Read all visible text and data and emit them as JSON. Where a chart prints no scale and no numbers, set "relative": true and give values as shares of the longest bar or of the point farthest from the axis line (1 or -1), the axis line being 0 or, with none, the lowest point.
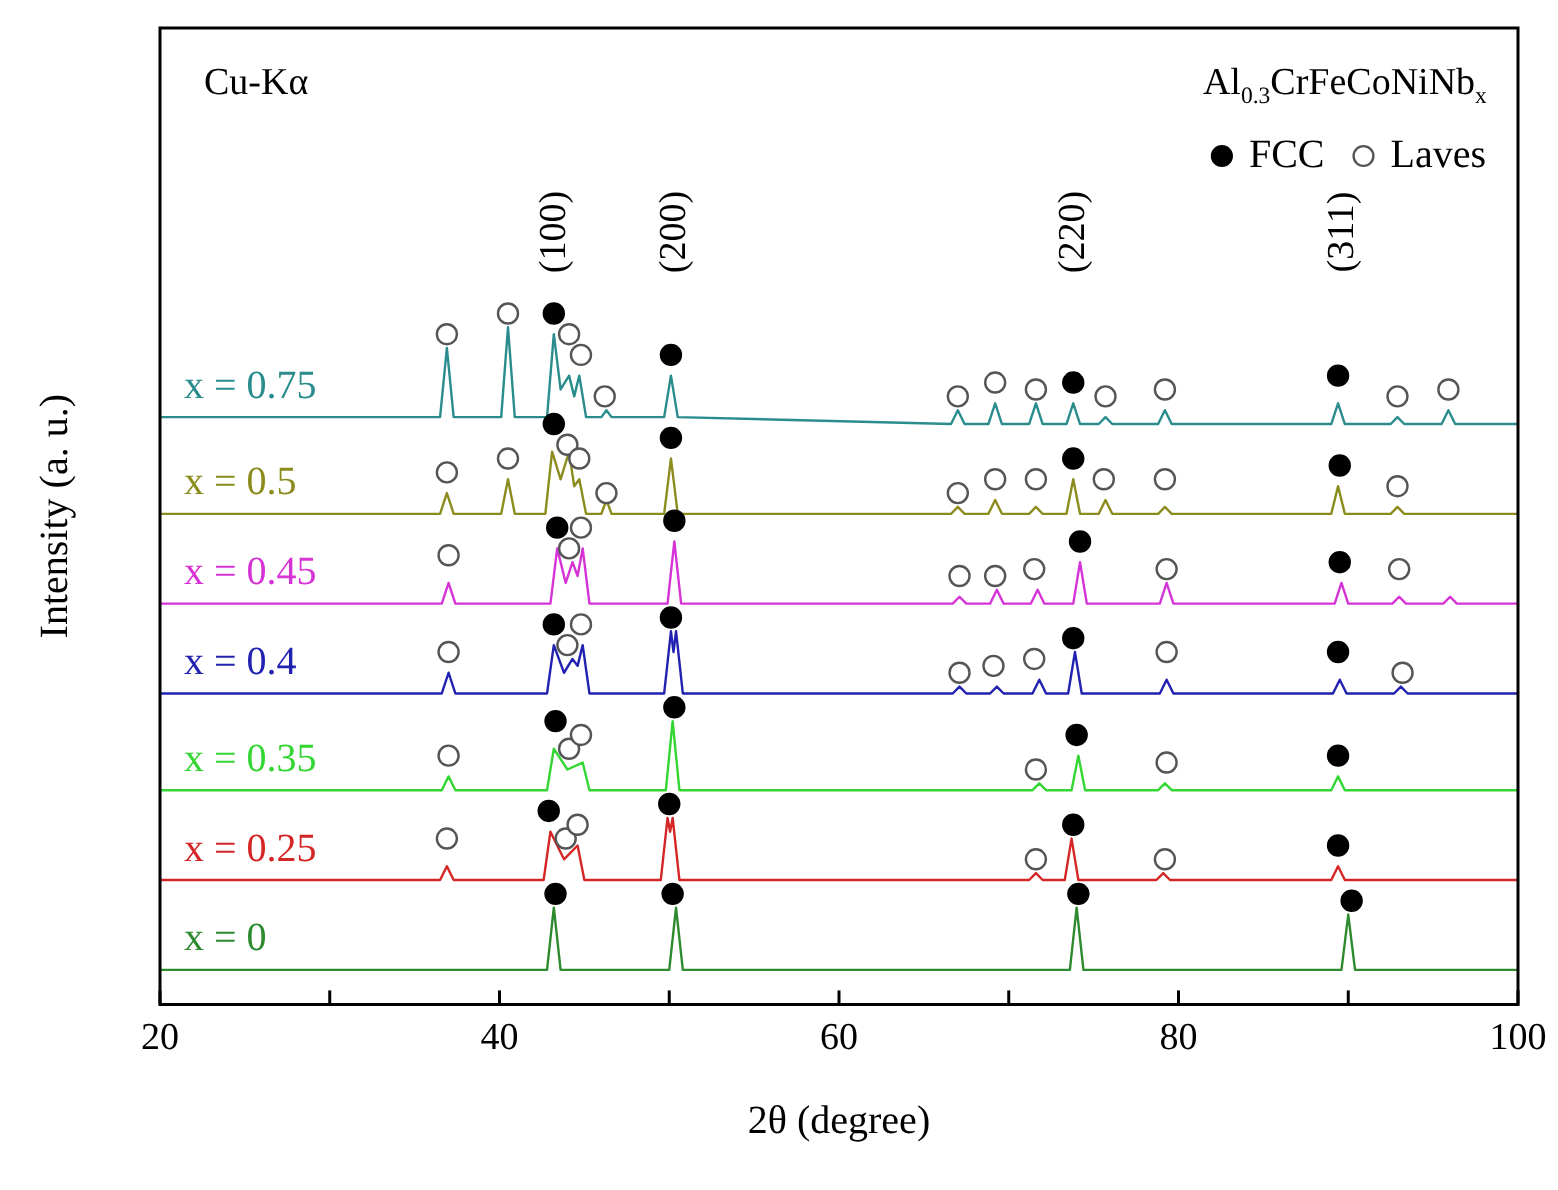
{
  "chart_data": {
    "type": "line",
    "relative": true,
    "xlabel": "2θ (degree)",
    "ylabel": "Intensity (a. u.)",
    "xlim": [
      20,
      100
    ],
    "xticks": [
      20,
      40,
      60,
      80,
      100,
      {
        "value": 30,
        "label": null
      },
      {
        "value": 50,
        "label": null
      },
      {
        "value": 70,
        "label": null
      },
      {
        "value": 90,
        "label": null
      }
    ],
    "legend": "top right",
    "annotations": [
      "Cu-Kα",
      "Al$_{0.3}$CrFeCoNiNb$_{x}$",
      "(100)",
      "(200)",
      "(220)",
      "(311)"
    ],
    "series": [
      {
        "name": "x = 0.75",
        "color": "#2a8c8c",
        "x": [
          20,
          36.5,
          36.9,
          37.3,
          40.1,
          40.5,
          40.9,
          42.8,
          43.2,
          43.6,
          44.1,
          44.4,
          44.7,
          45.1,
          46.0,
          46.3,
          46.6,
          49.7,
          50.1,
          50.5,
          66.6,
          67.0,
          67.4,
          68.8,
          69.2,
          69.6,
          71.2,
          71.6,
          72.0,
          73.4,
          73.8,
          74.2,
          75.3,
          75.7,
          76.1,
          78.8,
          79.2,
          79.6,
          89.0,
          89.4,
          89.8,
          92.5,
          92.9,
          93.3,
          95.5,
          95.9,
          96.3,
          100
        ],
        "values": [
          0.85,
          0.85,
          0.95,
          0.85,
          0.85,
          0.98,
          0.85,
          0.85,
          0.97,
          0.89,
          0.91,
          0.88,
          0.91,
          0.85,
          0.85,
          0.86,
          0.85,
          0.85,
          0.91,
          0.85,
          0.84,
          0.86,
          0.84,
          0.84,
          0.87,
          0.84,
          0.84,
          0.87,
          0.84,
          0.84,
          0.87,
          0.84,
          0.84,
          0.85,
          0.84,
          0.84,
          0.86,
          0.84,
          0.84,
          0.87,
          0.84,
          0.84,
          0.85,
          0.84,
          0.84,
          0.86,
          0.84,
          0.84
        ]
      },
      {
        "name": "x = 0.5",
        "color": "#8c8c1e",
        "x": [
          20,
          36.5,
          36.9,
          37.3,
          40.1,
          40.5,
          40.9,
          42.7,
          43.1,
          43.6,
          44.1,
          44.4,
          44.7,
          45.1,
          46.0,
          46.3,
          46.6,
          49.7,
          50.1,
          50.5,
          66.6,
          67.0,
          67.4,
          68.8,
          69.2,
          69.6,
          71.2,
          71.6,
          72.0,
          73.4,
          73.8,
          74.2,
          75.3,
          75.7,
          76.1,
          78.8,
          79.2,
          79.6,
          89.0,
          89.4,
          89.8,
          92.5,
          92.9,
          93.3,
          100
        ],
        "values": [
          0.71,
          0.71,
          0.74,
          0.71,
          0.71,
          0.76,
          0.71,
          0.71,
          0.8,
          0.76,
          0.8,
          0.75,
          0.76,
          0.71,
          0.71,
          0.73,
          0.71,
          0.71,
          0.79,
          0.71,
          0.71,
          0.72,
          0.71,
          0.71,
          0.73,
          0.71,
          0.71,
          0.72,
          0.71,
          0.71,
          0.76,
          0.71,
          0.71,
          0.73,
          0.71,
          0.71,
          0.72,
          0.71,
          0.71,
          0.75,
          0.71,
          0.71,
          0.72,
          0.71,
          0.71
        ]
      },
      {
        "name": "x = 0.45",
        "color": "#d633d6",
        "x": [
          20,
          36.6,
          37.0,
          37.4,
          43.0,
          43.4,
          43.9,
          44.3,
          44.6,
          44.9,
          45.3,
          49.9,
          50.3,
          50.7,
          66.7,
          67.1,
          67.5,
          68.9,
          69.3,
          69.7,
          71.3,
          71.7,
          72.1,
          73.8,
          74.2,
          74.6,
          78.9,
          79.3,
          79.7,
          89.2,
          89.6,
          90.0,
          92.6,
          93.0,
          93.4,
          95.6,
          96.0,
          96.4,
          100
        ],
        "values": [
          0.58,
          0.58,
          0.61,
          0.58,
          0.58,
          0.66,
          0.61,
          0.64,
          0.62,
          0.66,
          0.58,
          0.58,
          0.67,
          0.58,
          0.58,
          0.59,
          0.58,
          0.58,
          0.6,
          0.58,
          0.58,
          0.6,
          0.58,
          0.58,
          0.64,
          0.58,
          0.58,
          0.61,
          0.58,
          0.58,
          0.61,
          0.58,
          0.58,
          0.59,
          0.58,
          0.58,
          0.59,
          0.58,
          0.58
        ]
      },
      {
        "name": "x = 0.4",
        "color": "#2222b0",
        "x": [
          20,
          36.6,
          37.0,
          37.4,
          42.8,
          43.2,
          43.8,
          44.3,
          44.6,
          44.9,
          45.3,
          49.7,
          50.1,
          50.25,
          50.4,
          50.8,
          66.7,
          67.1,
          67.5,
          68.9,
          69.3,
          69.7,
          71.4,
          71.8,
          72.2,
          73.5,
          73.9,
          74.3,
          78.9,
          79.3,
          79.7,
          89.1,
          89.5,
          89.9,
          92.7,
          93.1,
          93.5,
          100
        ],
        "values": [
          0.45,
          0.45,
          0.48,
          0.45,
          0.45,
          0.52,
          0.48,
          0.5,
          0.49,
          0.52,
          0.45,
          0.45,
          0.54,
          0.51,
          0.54,
          0.45,
          0.45,
          0.46,
          0.45,
          0.45,
          0.46,
          0.45,
          0.45,
          0.47,
          0.45,
          0.45,
          0.51,
          0.45,
          0.45,
          0.47,
          0.45,
          0.45,
          0.47,
          0.45,
          0.45,
          0.46,
          0.45,
          0.45
        ]
      },
      {
        "name": "x = 0.35",
        "color": "#33d633",
        "x": [
          20,
          36.6,
          37.0,
          37.4,
          42.8,
          43.2,
          44.0,
          44.9,
          45.3,
          49.8,
          50.2,
          50.6,
          71.4,
          71.8,
          72.2,
          73.7,
          74.1,
          74.5,
          78.8,
          79.2,
          79.6,
          89.0,
          89.4,
          89.8,
          100
        ],
        "values": [
          0.31,
          0.31,
          0.33,
          0.31,
          0.31,
          0.37,
          0.34,
          0.35,
          0.31,
          0.31,
          0.41,
          0.31,
          0.31,
          0.32,
          0.31,
          0.31,
          0.36,
          0.31,
          0.31,
          0.32,
          0.31,
          0.31,
          0.33,
          0.31,
          0.31
        ]
      },
      {
        "name": "x = 0.25",
        "color": "#d42626",
        "x": [
          20,
          36.5,
          36.9,
          37.3,
          42.6,
          43.0,
          43.8,
          44.6,
          45.0,
          49.5,
          49.9,
          50.05,
          50.2,
          50.6,
          71.2,
          71.6,
          72.0,
          73.3,
          73.7,
          74.1,
          78.7,
          79.1,
          79.5,
          89.0,
          89.4,
          89.8,
          100
        ],
        "values": [
          0.18,
          0.18,
          0.2,
          0.18,
          0.18,
          0.25,
          0.21,
          0.23,
          0.18,
          0.18,
          0.27,
          0.25,
          0.27,
          0.18,
          0.18,
          0.19,
          0.18,
          0.18,
          0.24,
          0.18,
          0.18,
          0.19,
          0.18,
          0.18,
          0.2,
          0.18,
          0.18
        ]
      },
      {
        "name": "x = 0",
        "color": "#2e8a2e",
        "x": [
          20,
          42.8,
          43.2,
          43.6,
          50.0,
          50.4,
          50.8,
          73.6,
          74.0,
          74.4,
          89.6,
          90.0,
          90.4,
          100
        ],
        "values": [
          0.05,
          0.05,
          0.14,
          0.05,
          0.05,
          0.14,
          0.05,
          0.05,
          0.14,
          0.05,
          0.05,
          0.13,
          0.05,
          0.05
        ]
      },
      {
        "name": "FCC",
        "type": "scatter",
        "marker": "circle",
        "color": "#000000",
        "x": [
          43.2,
          50.1,
          73.8,
          89.4,
          43.2,
          50.1,
          73.8,
          89.5,
          43.4,
          50.3,
          74.2,
          89.5,
          43.2,
          50.1,
          73.8,
          89.4,
          43.3,
          50.3,
          74.0,
          89.4,
          42.9,
          50.0,
          73.8,
          89.4,
          43.3,
          50.2,
          74.1,
          90.2
        ],
        "values": [
          1.0,
          0.94,
          0.9,
          0.91,
          0.84,
          0.82,
          0.79,
          0.78,
          0.69,
          0.7,
          0.67,
          0.64,
          0.55,
          0.56,
          0.53,
          0.51,
          0.41,
          0.43,
          0.39,
          0.36,
          0.28,
          0.29,
          0.26,
          0.23,
          0.16,
          0.16,
          0.16,
          0.15
        ]
      },
      {
        "name": "Laves",
        "type": "scatter",
        "marker": "circle",
        "color": "#555555",
        "x": [
          36.9,
          40.5,
          44.1,
          44.8,
          46.2,
          67.0,
          69.2,
          71.6,
          75.7,
          79.2,
          92.9,
          95.9,
          36.9,
          40.5,
          44.0,
          44.7,
          46.3,
          67.0,
          69.2,
          71.6,
          75.6,
          79.2,
          92.9,
          37.0,
          44.1,
          44.8,
          67.1,
          69.2,
          71.5,
          79.3,
          93.0,
          37.0,
          44.0,
          44.8,
          67.1,
          69.1,
          71.5,
          79.3,
          93.2,
          37.0,
          44.1,
          44.8,
          71.6,
          79.3,
          36.9,
          43.9,
          44.6,
          71.6,
          79.2
        ],
        "values": [
          0.97,
          1.0,
          0.97,
          0.94,
          0.88,
          0.88,
          0.9,
          0.89,
          0.88,
          0.89,
          0.88,
          0.89,
          0.77,
          0.79,
          0.81,
          0.79,
          0.74,
          0.74,
          0.76,
          0.76,
          0.76,
          0.76,
          0.75,
          0.65,
          0.66,
          0.69,
          0.62,
          0.62,
          0.63,
          0.63,
          0.63,
          0.51,
          0.52,
          0.55,
          0.48,
          0.49,
          0.5,
          0.51,
          0.48,
          0.36,
          0.37,
          0.39,
          0.34,
          0.35,
          0.24,
          0.24,
          0.26,
          0.21,
          0.21
        ]
      }
    ]
  }
}
